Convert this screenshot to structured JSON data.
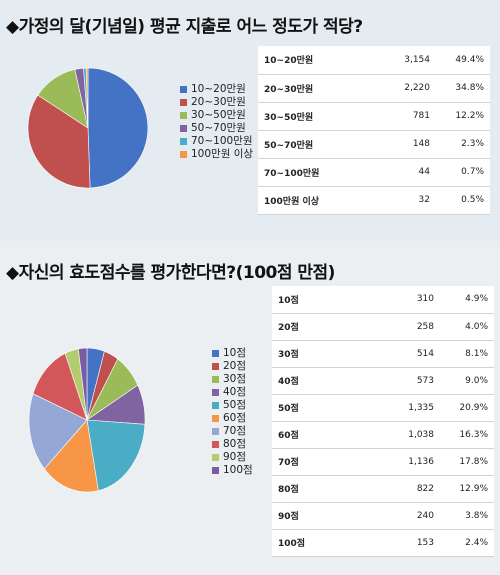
{
  "chart_data": [
    {
      "type": "pie",
      "title": "◆가정의 달(기념일) 평균 지출로 어느 정도가 적당?",
      "categories": [
        "10~20만원",
        "20~30만원",
        "30~50만원",
        "50~70만원",
        "70~100만원",
        "100만원 이상"
      ],
      "legend_labels": [
        "10~20만원",
        "20~30만원",
        "30~50만원",
        "50~70만원",
        "70~100만원",
        "100만원 이상"
      ],
      "values": [
        3154,
        2220,
        781,
        148,
        44,
        32
      ],
      "percents": [
        "49.4%",
        "34.8%",
        "12.2%",
        "2.3%",
        "0.7%",
        "0.5%"
      ],
      "counts_display": [
        "3,154",
        "2,220",
        "781",
        "148",
        "44",
        "32"
      ],
      "colors": [
        "#4472c4",
        "#c0504d",
        "#9bbb59",
        "#8064a2",
        "#4bacc6",
        "#f79646"
      ],
      "legend_position": "right"
    },
    {
      "type": "pie",
      "title": "◆자신의 효도점수를 평가한다면?(100점 만점)",
      "categories": [
        "10점",
        "20점",
        "30점",
        "40점",
        "50점",
        "60점",
        "70점",
        "80점",
        "90점",
        "100점"
      ],
      "legend_labels": [
        "10점",
        "20점",
        "30점",
        "40점",
        "50점",
        "60점",
        "70점",
        "80점",
        "90점",
        "100점"
      ],
      "values": [
        310,
        258,
        514,
        573,
        1335,
        1038,
        1136,
        822,
        240,
        153
      ],
      "percents": [
        "4.9%",
        "4.0%",
        "8.1%",
        "9.0%",
        "20.9%",
        "16.3%",
        "17.8%",
        "12.9%",
        "3.8%",
        "2.4%"
      ],
      "counts_display": [
        "310",
        "258",
        "514",
        "573",
        "1,335",
        "1,038",
        "1,136",
        "822",
        "240",
        "153"
      ],
      "colors": [
        "#4472c4",
        "#c0504d",
        "#9bbb59",
        "#8064a2",
        "#4bacc6",
        "#f79646",
        "#95a7d4",
        "#d2565a",
        "#b3cd6e",
        "#7a5ca6"
      ],
      "legend_position": "right"
    }
  ]
}
